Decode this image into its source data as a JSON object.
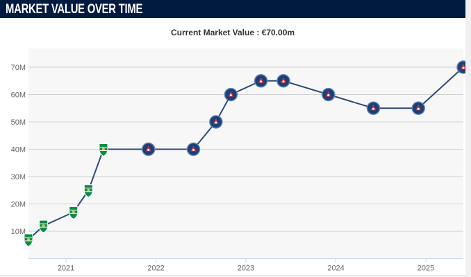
{
  "header": {
    "title": "MARKET VALUE OVER TIME"
  },
  "chart_data": {
    "type": "line",
    "title": "Current Market Value : €70.00m",
    "xlabel": "",
    "ylabel": "",
    "x_ticks": [
      "2021",
      "2022",
      "2023",
      "2024",
      "2025"
    ],
    "y_ticks": [
      "10M",
      "20M",
      "30M",
      "40M",
      "50M",
      "60M",
      "70M"
    ],
    "ylim": [
      0,
      70
    ],
    "xlim": [
      "2020-08",
      "2025-06"
    ],
    "grid": true,
    "line_color": "#2c4a75",
    "plot_bg": "#f7f7f7",
    "points": [
      {
        "date": "2020-08",
        "value": 7,
        "club": "Sporting CP"
      },
      {
        "date": "2020-10",
        "value": 12,
        "club": "Sporting CP"
      },
      {
        "date": "2021-02",
        "value": 17,
        "club": "Sporting CP"
      },
      {
        "date": "2021-04",
        "value": 25,
        "club": "Sporting CP"
      },
      {
        "date": "2021-06",
        "value": 40,
        "club": "Sporting CP"
      },
      {
        "date": "2021-12",
        "value": 40,
        "club": "Paris Saint-Germain"
      },
      {
        "date": "2022-06",
        "value": 40,
        "club": "Paris Saint-Germain"
      },
      {
        "date": "2022-09",
        "value": 50,
        "club": "Paris Saint-Germain"
      },
      {
        "date": "2022-11",
        "value": 60,
        "club": "Paris Saint-Germain"
      },
      {
        "date": "2023-03",
        "value": 65,
        "club": "Paris Saint-Germain"
      },
      {
        "date": "2023-06",
        "value": 65,
        "club": "Paris Saint-Germain"
      },
      {
        "date": "2023-12",
        "value": 60,
        "club": "Paris Saint-Germain"
      },
      {
        "date": "2024-06",
        "value": 55,
        "club": "Paris Saint-Germain"
      },
      {
        "date": "2024-12",
        "value": 55,
        "club": "Paris Saint-Germain"
      },
      {
        "date": "2025-06",
        "value": 70,
        "club": "Paris Saint-Germain"
      }
    ]
  }
}
